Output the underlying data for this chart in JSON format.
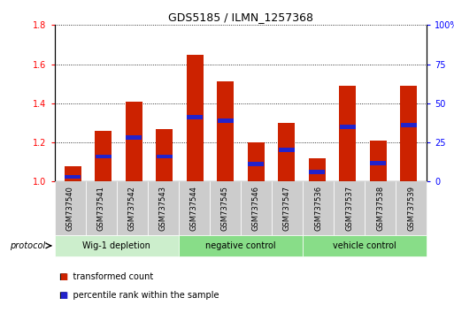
{
  "title": "GDS5185 / ILMN_1257368",
  "samples": [
    "GSM737540",
    "GSM737541",
    "GSM737542",
    "GSM737543",
    "GSM737544",
    "GSM737545",
    "GSM737546",
    "GSM737547",
    "GSM737536",
    "GSM737537",
    "GSM737538",
    "GSM737539"
  ],
  "red_values": [
    1.08,
    1.26,
    1.41,
    1.27,
    1.65,
    1.51,
    1.2,
    1.3,
    1.12,
    1.49,
    1.21,
    1.49
  ],
  "blue_values_pct": [
    3,
    16,
    28,
    16,
    41,
    39,
    11,
    20,
    6,
    35,
    12,
    36
  ],
  "groups": [
    {
      "label": "Wig-1 depletion",
      "start": 0,
      "end": 4,
      "color": "#cceecc"
    },
    {
      "label": "negative control",
      "start": 4,
      "end": 8,
      "color": "#88dd88"
    },
    {
      "label": "vehicle control",
      "start": 8,
      "end": 12,
      "color": "#88dd88"
    }
  ],
  "ylim_left": [
    1.0,
    1.8
  ],
  "ylim_right": [
    0,
    100
  ],
  "yticks_left": [
    1.0,
    1.2,
    1.4,
    1.6,
    1.8
  ],
  "yticks_right": [
    0,
    25,
    50,
    75,
    100
  ],
  "bar_color": "#cc2200",
  "blue_color": "#2222cc",
  "bar_width": 0.55,
  "legend_red": "transformed count",
  "legend_blue": "percentile rank within the sample",
  "protocol_label": "protocol",
  "tick_bg_color": "#cccccc",
  "plot_bg": "#ffffff"
}
